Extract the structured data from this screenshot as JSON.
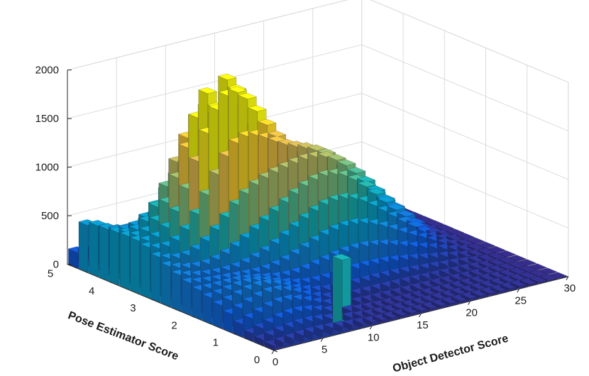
{
  "chart_data": {
    "type": "bar3",
    "title": "",
    "xlabel": "Object Detector Score",
    "ylabel": "Pose Estimator Score",
    "zlabel": "",
    "xlim": [
      0,
      30
    ],
    "ylim": [
      0,
      5
    ],
    "zlim": [
      0,
      2000
    ],
    "x_ticks": [
      0,
      5,
      10,
      15,
      20,
      25,
      30
    ],
    "y_ticks": [
      0,
      1,
      2,
      3,
      4,
      5
    ],
    "z_ticks": [
      0,
      500,
      1000,
      1500,
      2000
    ],
    "grid": true,
    "colormap": "parula",
    "x_bin_count": 30,
    "y_bin_count": 20,
    "peak": {
      "x": 9.5,
      "y": 3.6,
      "count": 1550
    },
    "spike": {
      "x": 8.5,
      "y": 0.4,
      "count": 680
    },
    "surface_notes": "bivariate histogram: counts rise toward high pose scores and low-to-mid detector scores; near-zero counts for detector score > 15 at low pose scores"
  }
}
